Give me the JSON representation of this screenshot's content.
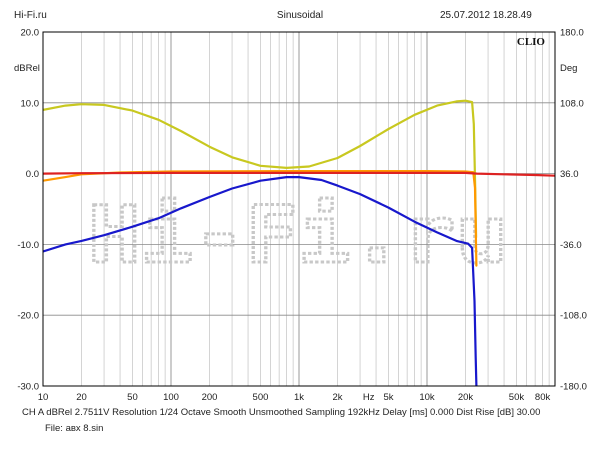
{
  "header": {
    "site": "Hi-Fi.ru",
    "mode": "Sinusoidal",
    "datetime": "25.07.2012 18.28.49"
  },
  "logo": "CLIO",
  "watermark": "Hi-Fi.ru",
  "footer": {
    "line1": "CH A   dBRel 2.7511V   Resolution 1/24 Octave   Smooth Unsmoothed   Sampling 192kHz   Delay [ms] 0.000    Dist Rise [dB] 30.00",
    "line2": "File: авх 8.sin"
  },
  "chart_data": {
    "type": "line",
    "xscale": "log",
    "xlim": [
      10,
      100000
    ],
    "xlabel": "Hz",
    "ylabel_left": "dBRel",
    "ylabel_right": "Deg",
    "ylim": [
      -30,
      20
    ],
    "y2lim": [
      -180,
      180
    ],
    "grid": true,
    "x_ticks": [
      {
        "v": 10,
        "t": "10"
      },
      {
        "v": 20,
        "t": "20"
      },
      {
        "v": 50,
        "t": "50"
      },
      {
        "v": 100,
        "t": "100"
      },
      {
        "v": 200,
        "t": "200"
      },
      {
        "v": 500,
        "t": "500"
      },
      {
        "v": 1000,
        "t": "1k"
      },
      {
        "v": 2000,
        "t": "2k"
      },
      {
        "v": 5000,
        "t": "5k"
      },
      {
        "v": 10000,
        "t": "10k"
      },
      {
        "v": 20000,
        "t": "20k"
      },
      {
        "v": 50000,
        "t": "50k"
      },
      {
        "v": 80000,
        "t": "80k"
      }
    ],
    "hz_label_at": 3500,
    "y_ticks_left": [
      {
        "v": 20,
        "t": "20.0"
      },
      {
        "v": 10,
        "t": "10.0"
      },
      {
        "v": 0,
        "t": "0.0"
      },
      {
        "v": -10,
        "t": "-10.0"
      },
      {
        "v": -20,
        "t": "-20.0"
      },
      {
        "v": -30,
        "t": "-30.0"
      }
    ],
    "y_ticks_right": [
      {
        "v": 180,
        "t": "180.0"
      },
      {
        "v": 108,
        "t": "108.0"
      },
      {
        "v": 36,
        "t": "36.0"
      },
      {
        "v": -36,
        "t": "-36.0"
      },
      {
        "v": -108,
        "t": "-108.0"
      },
      {
        "v": -180,
        "t": "-180.0"
      }
    ],
    "series": [
      {
        "color": "#c8c820",
        "axis": "left",
        "points": [
          [
            10,
            9.0
          ],
          [
            15,
            9.6
          ],
          [
            20,
            9.8
          ],
          [
            30,
            9.7
          ],
          [
            50,
            8.9
          ],
          [
            80,
            7.6
          ],
          [
            120,
            6.0
          ],
          [
            200,
            3.8
          ],
          [
            300,
            2.3
          ],
          [
            500,
            1.1
          ],
          [
            800,
            0.8
          ],
          [
            1200,
            1.0
          ],
          [
            2000,
            2.2
          ],
          [
            3000,
            3.9
          ],
          [
            5000,
            6.3
          ],
          [
            8000,
            8.3
          ],
          [
            12000,
            9.6
          ],
          [
            17000,
            10.2
          ],
          [
            20000,
            10.3
          ],
          [
            22500,
            10.1
          ],
          [
            23200,
            7.0
          ],
          [
            23800,
            -2.0
          ],
          [
            24200,
            -9.0
          ]
        ]
      },
      {
        "color": "#ff9900",
        "axis": "left",
        "points": [
          [
            10,
            -1.0
          ],
          [
            15,
            -0.5
          ],
          [
            20,
            -0.1
          ],
          [
            40,
            0.15
          ],
          [
            100,
            0.3
          ],
          [
            1000,
            0.35
          ],
          [
            10000,
            0.35
          ],
          [
            20000,
            0.3
          ],
          [
            23000,
            0.2
          ],
          [
            23700,
            -2.0
          ],
          [
            24300,
            -13.0
          ]
        ]
      },
      {
        "color": "#dd2222",
        "axis": "left",
        "points": [
          [
            10,
            0.0
          ],
          [
            20,
            0.05
          ],
          [
            100,
            0.1
          ],
          [
            1000,
            0.1
          ],
          [
            10000,
            0.1
          ],
          [
            20000,
            0.1
          ],
          [
            24500,
            0.0
          ],
          [
            40000,
            -0.1
          ],
          [
            70000,
            -0.2
          ],
          [
            100000,
            -0.3
          ]
        ]
      },
      {
        "color": "#1818cc",
        "axis": "left",
        "points": [
          [
            10,
            -11.0
          ],
          [
            15,
            -10.0
          ],
          [
            20,
            -9.5
          ],
          [
            30,
            -8.7
          ],
          [
            50,
            -7.5
          ],
          [
            80,
            -6.3
          ],
          [
            120,
            -4.9
          ],
          [
            200,
            -3.3
          ],
          [
            300,
            -2.1
          ],
          [
            500,
            -1.0
          ],
          [
            800,
            -0.5
          ],
          [
            1000,
            -0.5
          ],
          [
            1500,
            -0.9
          ],
          [
            2000,
            -1.7
          ],
          [
            3000,
            -2.9
          ],
          [
            5000,
            -4.8
          ],
          [
            8000,
            -6.8
          ],
          [
            12000,
            -8.3
          ],
          [
            17000,
            -9.5
          ],
          [
            21000,
            -9.9
          ],
          [
            22500,
            -10.5
          ],
          [
            23500,
            -18.0
          ],
          [
            24000,
            -26.0
          ],
          [
            24300,
            -30.0
          ]
        ]
      }
    ]
  }
}
